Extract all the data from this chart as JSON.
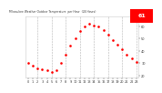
{
  "title": "Milwaukee Weather Outdoor Temperature per Hour (24 Hours)",
  "hours": [
    0,
    1,
    2,
    3,
    4,
    5,
    6,
    7,
    8,
    9,
    10,
    11,
    12,
    13,
    14,
    15,
    16,
    17,
    18,
    19,
    20,
    21,
    22,
    23
  ],
  "temps": [
    30,
    28,
    26,
    25,
    24,
    23,
    24,
    30,
    37,
    44,
    50,
    56,
    60,
    62,
    61,
    60,
    57,
    53,
    49,
    45,
    41,
    37,
    34,
    31
  ],
  "line_color": "#ff0000",
  "bg_color": "#ffffff",
  "plot_bg_color": "#ffffff",
  "grid_color": "#aaaaaa",
  "text_color": "#333333",
  "tick_color": "#333333",
  "ylim": [
    18,
    68
  ],
  "xlim": [
    -0.5,
    23.5
  ],
  "highlight_box_color": "#ff0000",
  "highlight_val": "61",
  "yticks": [
    20,
    30,
    40,
    50,
    60
  ],
  "grid_hours": [
    2,
    5,
    8,
    11,
    14,
    17,
    20,
    23
  ],
  "xtick_positions": [
    0,
    1,
    2,
    3,
    4,
    5,
    6,
    7,
    8,
    9,
    10,
    11,
    12,
    13,
    14,
    15,
    16,
    17,
    18,
    19,
    20,
    21,
    22,
    23
  ],
  "xtick_labels": [
    "0",
    "1",
    "2",
    "3",
    "4",
    "5",
    "6",
    "7",
    "8",
    "9",
    "10",
    "11",
    "12",
    "13",
    "14",
    "15",
    "16",
    "17",
    "18",
    "19",
    "20",
    "21",
    "22",
    "23"
  ]
}
